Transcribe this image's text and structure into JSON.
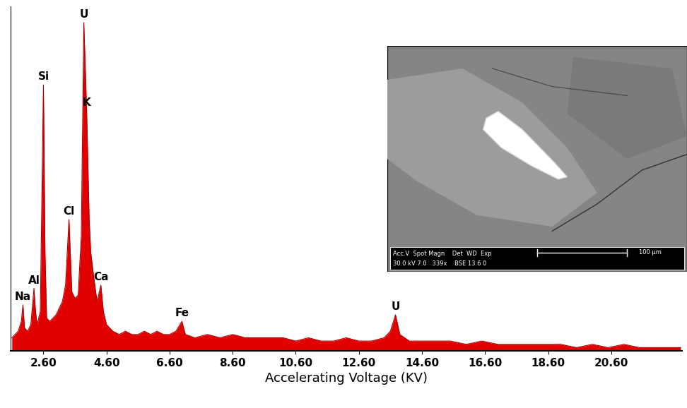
{
  "chart_data": {
    "type": "area",
    "xlabel": "Accelerating Voltage (KV)",
    "color": "#e00000",
    "grid": false,
    "tick_labels": "x",
    "x": [
      1.6,
      1.7,
      1.8,
      1.9,
      1.95,
      2.0,
      2.1,
      2.2,
      2.3,
      2.35,
      2.4,
      2.5,
      2.6,
      2.65,
      2.7,
      2.8,
      2.9,
      3.0,
      3.1,
      3.2,
      3.3,
      3.41,
      3.5,
      3.6,
      3.7,
      3.8,
      3.88,
      3.97,
      4.05,
      4.1,
      4.2,
      4.3,
      4.42,
      4.5,
      4.6,
      4.8,
      5.0,
      5.2,
      5.4,
      5.6,
      5.8,
      6.0,
      6.2,
      6.4,
      6.6,
      6.8,
      6.99,
      7.1,
      7.4,
      7.8,
      8.2,
      8.6,
      9.0,
      9.4,
      9.8,
      10.2,
      10.6,
      11.0,
      11.4,
      11.8,
      12.2,
      12.6,
      13.0,
      13.4,
      13.6,
      13.76,
      13.9,
      14.2,
      14.6,
      15.0,
      15.5,
      16.0,
      16.5,
      17.0,
      17.5,
      18.0,
      18.5,
      19.0,
      19.5,
      20.0,
      20.5,
      21.0,
      21.5,
      22.0,
      22.5,
      22.8
    ],
    "values": [
      4,
      5,
      6,
      9,
      14,
      7,
      6,
      8,
      19,
      12,
      8,
      12,
      81,
      30,
      10,
      9,
      10,
      11,
      13,
      15,
      20,
      40,
      18,
      16,
      17,
      35,
      100,
      73,
      40,
      30,
      22,
      15,
      20,
      12,
      8,
      6,
      5,
      6,
      5,
      5,
      6,
      5,
      6,
      5,
      5,
      6,
      9,
      5,
      4,
      5,
      4,
      5,
      4,
      4,
      4,
      4,
      3,
      4,
      3,
      3,
      4,
      3,
      3,
      4,
      6,
      11,
      5,
      3,
      3,
      3,
      3,
      2,
      3,
      2,
      2,
      2,
      2,
      2,
      1,
      2,
      1,
      2,
      1,
      1,
      1,
      1
    ],
    "xlim": [
      1.55,
      22.85
    ],
    "ylim": [
      0,
      105
    ],
    "xticks": [
      {
        "value": 2.6,
        "label": "2.60"
      },
      {
        "value": 4.6,
        "label": "4.60"
      },
      {
        "value": 6.6,
        "label": "6.60"
      },
      {
        "value": 8.6,
        "label": "8.60"
      },
      {
        "value": 10.6,
        "label": "10.60"
      },
      {
        "value": 12.6,
        "label": "12.60"
      },
      {
        "value": 14.6,
        "label": "14.60"
      },
      {
        "value": 16.6,
        "label": "16.60"
      },
      {
        "value": 18.6,
        "label": "18.60"
      },
      {
        "value": 20.6,
        "label": "20.60"
      }
    ],
    "annotations": [
      {
        "text": "Na",
        "x": 1.95
      },
      {
        "text": "Al",
        "x": 2.3
      },
      {
        "text": "Si",
        "x": 2.6
      },
      {
        "text": "Cl",
        "x": 3.41
      },
      {
        "text": "U",
        "x": 3.88
      },
      {
        "text": "K",
        "x": 3.97
      },
      {
        "text": "Ca",
        "x": 4.42
      },
      {
        "text": "Fe",
        "x": 6.99
      },
      {
        "text": "U",
        "x": 13.76
      }
    ]
  },
  "inset": {
    "header": "Acc.V  Spot Magn    Det  WD  Exp",
    "values": "30.0 kV 7.0   339x    BSE 13.6 0",
    "scale_bar": "100 µm"
  }
}
